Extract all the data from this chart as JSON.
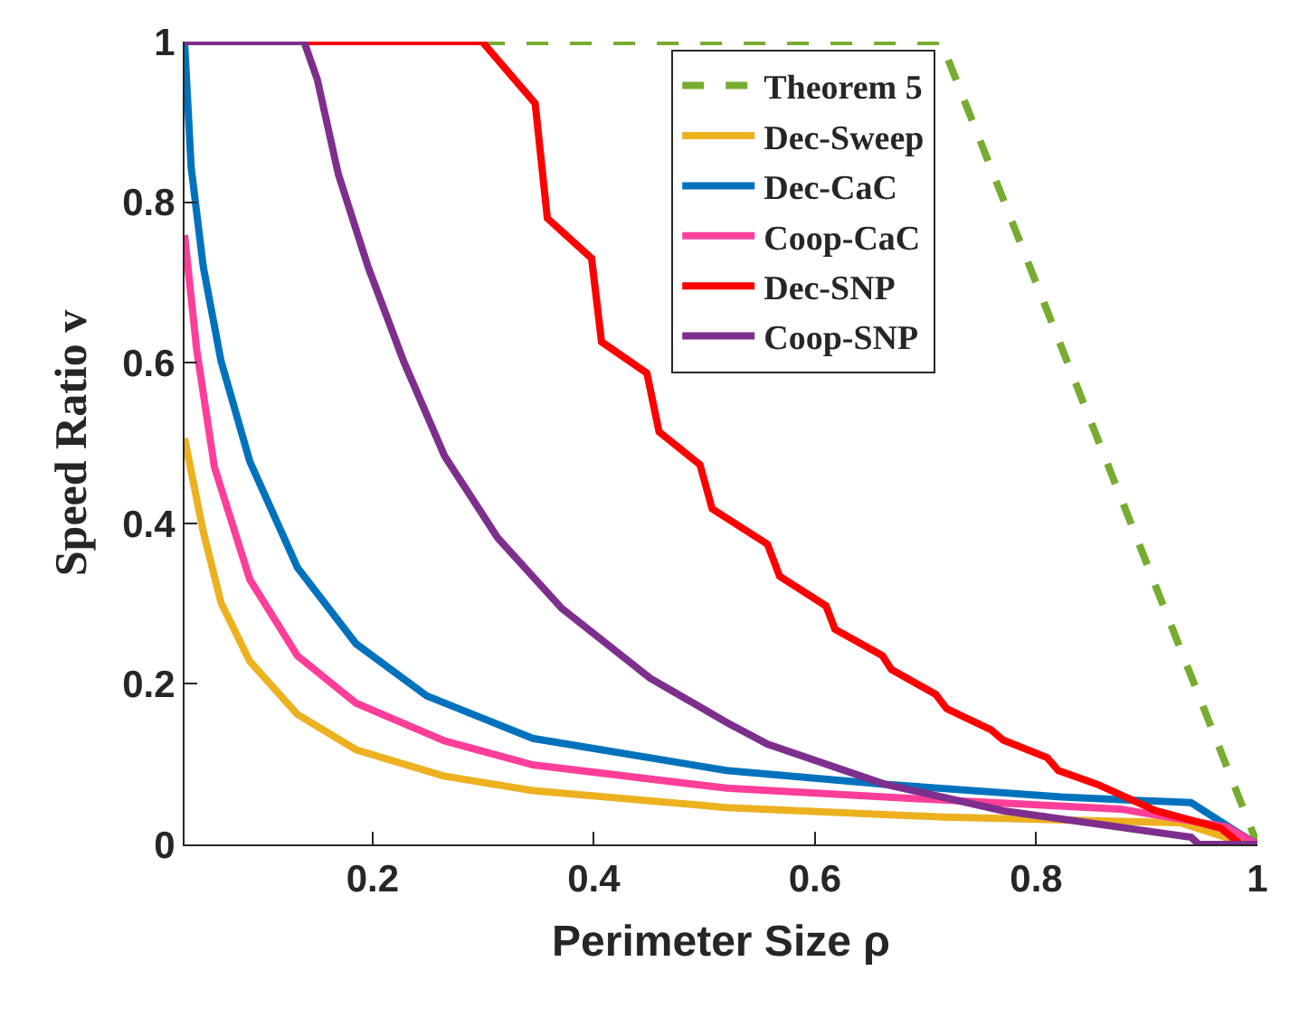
{
  "chart_data": {
    "type": "line",
    "xlabel": "Perimeter Size ρ",
    "ylabel": "Speed Ratio v",
    "xlim": [
      0.03,
      1
    ],
    "xticks": [
      0.2,
      0.4,
      0.6,
      0.8,
      1
    ],
    "ylim": [
      0,
      1
    ],
    "yticks": [
      0,
      0.2,
      0.4,
      0.6,
      0.8,
      1
    ],
    "legend": "top right",
    "marker": "none",
    "series": [
      {
        "name": "Theorem 5",
        "color": "#77ac30",
        "line_style": "dashed",
        "x": [
          0.3,
          0.714,
          1.0
        ],
        "values": [
          1,
          1,
          0
        ]
      },
      {
        "name": "Dec-Sweep",
        "color": "#edb120",
        "x": [
          0.03,
          0.047,
          0.063,
          0.089,
          0.132,
          0.185,
          0.265,
          0.345,
          0.52,
          0.716,
          0.93,
          0.98,
          1.0
        ],
        "values": [
          0.506,
          0.389,
          0.301,
          0.228,
          0.162,
          0.118,
          0.085,
          0.067,
          0.046,
          0.034,
          0.027,
          0.005,
          0
        ]
      },
      {
        "name": "Dec-CaC",
        "color": "#0072bd",
        "x": [
          0.03,
          0.036,
          0.047,
          0.063,
          0.089,
          0.132,
          0.185,
          0.249,
          0.345,
          0.52,
          0.663,
          0.823,
          0.94,
          0.982,
          1.0
        ],
        "values": [
          1.0,
          0.843,
          0.719,
          0.602,
          0.477,
          0.345,
          0.25,
          0.185,
          0.132,
          0.092,
          0.075,
          0.059,
          0.052,
          0.015,
          0
        ]
      },
      {
        "name": "Coop-CaC",
        "color": "#ff3e9a",
        "x": [
          0.03,
          0.041,
          0.057,
          0.089,
          0.132,
          0.185,
          0.265,
          0.345,
          0.52,
          0.663,
          0.876,
          0.972,
          1.0
        ],
        "values": [
          0.759,
          0.616,
          0.47,
          0.33,
          0.235,
          0.176,
          0.129,
          0.099,
          0.07,
          0.059,
          0.044,
          0.022,
          0
        ]
      },
      {
        "name": "Dec-SNP",
        "color": "#ff0000",
        "x": [
          0.138,
          0.299,
          0.347,
          0.358,
          0.398,
          0.407,
          0.448,
          0.459,
          0.496,
          0.507,
          0.557,
          0.568,
          0.61,
          0.618,
          0.661,
          0.669,
          0.709,
          0.719,
          0.759,
          0.77,
          0.81,
          0.82,
          0.855,
          0.908,
          0.967,
          0.985,
          1.0
        ],
        "values": [
          1,
          1,
          0.923,
          0.78,
          0.73,
          0.626,
          0.587,
          0.514,
          0.473,
          0.418,
          0.374,
          0.334,
          0.297,
          0.268,
          0.235,
          0.218,
          0.187,
          0.169,
          0.143,
          0.13,
          0.108,
          0.092,
          0.075,
          0.042,
          0.02,
          0,
          0
        ]
      },
      {
        "name": "Coop-SNP",
        "color": "#7e2f8e",
        "x": [
          0.03,
          0.138,
          0.15,
          0.169,
          0.196,
          0.228,
          0.265,
          0.313,
          0.371,
          0.451,
          0.52,
          0.557,
          0.663,
          0.77,
          0.94,
          0.947,
          1.0
        ],
        "values": [
          1,
          1,
          0.953,
          0.835,
          0.719,
          0.602,
          0.484,
          0.382,
          0.294,
          0.207,
          0.152,
          0.125,
          0.075,
          0.042,
          0.009,
          0,
          0
        ]
      }
    ]
  }
}
